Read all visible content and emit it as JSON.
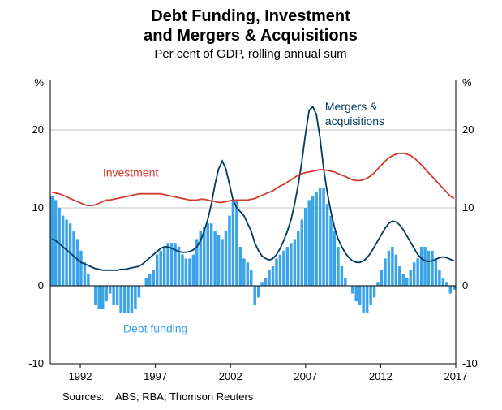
{
  "title_line1": "Debt Funding, Investment",
  "title_line2": "and Mergers & Acquisitions",
  "subtitle": "Per cent of GDP, rolling annual sum",
  "y_unit_left": "%",
  "y_unit_right": "%",
  "source_label": "Sources:",
  "source_text": "ABS; RBA; Thomson Reuters",
  "chart": {
    "type": "combo-bar-line",
    "x_start_year": 1990,
    "x_end_year": 2017,
    "points_per_year": 4,
    "xticks": [
      1992,
      1997,
      2002,
      2007,
      2012,
      2017
    ],
    "ylim": [
      -10,
      25
    ],
    "yticks": [
      -10,
      0,
      10,
      20
    ],
    "grid_color": "#c0c0c0",
    "axis_color": "#000000",
    "background_color": "#ffffff",
    "bar_color": "#3ba3e8",
    "bar_label": "Debt funding",
    "bar_label_color": "#3ba3e8",
    "line1_color": "#003a5c",
    "line1_label_l1": "Mergers &",
    "line1_label_l2": "acquisitions",
    "line1_label_color": "#003a5c",
    "line2_color": "#d43a2f",
    "line2_label": "Investment",
    "line2_label_color": "#d43a2f",
    "title_fontsize": 20,
    "subtitle_fontsize": 15,
    "axis_fontsize": 13,
    "legend_fontsize": 14,
    "source_fontsize": 13,
    "bars": [
      11.5,
      11,
      10,
      9,
      8.5,
      8,
      7,
      6,
      4.5,
      3,
      1.5,
      0,
      -2.5,
      -3,
      -3,
      -2,
      -1,
      -2.5,
      -2.5,
      -3.5,
      -3.5,
      -3.5,
      -3.5,
      -3,
      -1.5,
      0,
      1,
      1.5,
      2,
      4,
      4.5,
      5,
      5.5,
      5.5,
      5.5,
      5,
      4,
      3.5,
      3.5,
      4,
      6,
      7,
      7.5,
      8,
      8,
      7,
      6.5,
      6,
      7,
      9,
      11,
      11,
      5,
      3.5,
      3,
      2,
      -2.5,
      -1.5,
      0.5,
      1,
      2,
      2.5,
      3.5,
      4,
      4.5,
      5,
      5.5,
      6,
      7,
      8.5,
      10,
      11,
      11.5,
      12,
      12.5,
      12.5,
      10.5,
      9,
      7,
      5,
      2.5,
      1,
      0,
      -1,
      -2,
      -2.5,
      -3.5,
      -3.5,
      -2.5,
      -1.5,
      0.5,
      2,
      3.5,
      4.5,
      5,
      4,
      2.5,
      1.5,
      1,
      2,
      3,
      3.5,
      5,
      5,
      4.5,
      4.5,
      3.5,
      2,
      1,
      0.5,
      -1,
      -0.5
    ],
    "line_investment": [
      12,
      11.9,
      11.8,
      11.6,
      11.4,
      11.2,
      11.0,
      10.8,
      10.6,
      10.4,
      10.3,
      10.3,
      10.4,
      10.6,
      10.8,
      11.0,
      11.0,
      11.1,
      11.2,
      11.3,
      11.4,
      11.5,
      11.6,
      11.7,
      11.8,
      11.8,
      11.8,
      11.8,
      11.8,
      11.8,
      11.8,
      11.7,
      11.6,
      11.5,
      11.4,
      11.3,
      11.2,
      11.1,
      11.0,
      11.0,
      11.0,
      11.1,
      11.1,
      11.0,
      10.9,
      10.8,
      10.7,
      10.7,
      10.8,
      10.9,
      11.0,
      11.0,
      11.0,
      11.0,
      11.0,
      11.1,
      11.2,
      11.4,
      11.6,
      11.8,
      12.0,
      12.2,
      12.5,
      12.8,
      13.0,
      13.3,
      13.6,
      13.9,
      14.2,
      14.4,
      14.5,
      14.6,
      14.7,
      14.8,
      14.9,
      14.9,
      14.8,
      14.7,
      14.6,
      14.4,
      14.2,
      14.0,
      13.8,
      13.6,
      13.5,
      13.5,
      13.6,
      13.8,
      14.1,
      14.5,
      15.0,
      15.5,
      16.0,
      16.4,
      16.7,
      16.9,
      17.0,
      17.0,
      16.9,
      16.7,
      16.4,
      16.0,
      15.5,
      15.0,
      14.5,
      14.0,
      13.5,
      13.0,
      12.5,
      12.0,
      11.5,
      11.2
    ],
    "line_mergers": [
      6.0,
      5.8,
      5.4,
      5.0,
      4.6,
      4.2,
      3.8,
      3.4,
      3.0,
      2.8,
      2.6,
      2.4,
      2.2,
      2.1,
      2.0,
      2.0,
      2.0,
      2.0,
      2.0,
      2.1,
      2.1,
      2.2,
      2.3,
      2.4,
      2.5,
      2.8,
      3.2,
      3.6,
      4.0,
      4.4,
      4.8,
      5.0,
      5.0,
      4.8,
      4.6,
      4.4,
      4.3,
      4.3,
      4.4,
      4.6,
      5.0,
      5.8,
      7.0,
      8.5,
      10.5,
      13.0,
      15.0,
      16.0,
      15.0,
      13.0,
      11.0,
      10.0,
      9.5,
      9.0,
      8.0,
      7.0,
      5.5,
      4.5,
      3.8,
      3.5,
      3.3,
      3.5,
      4.0,
      4.8,
      5.8,
      7.0,
      8.5,
      10.5,
      13.0,
      16.0,
      19.5,
      22.5,
      23.0,
      22.0,
      19.0,
      15.0,
      12.0,
      9.5,
      7.5,
      6.0,
      5.0,
      4.2,
      3.6,
      3.2,
      3.0,
      3.0,
      3.2,
      3.6,
      4.2,
      5.0,
      5.8,
      6.6,
      7.4,
      8.0,
      8.3,
      8.2,
      7.8,
      7.2,
      6.4,
      5.6,
      4.8,
      4.0,
      3.5,
      3.2,
      3.1,
      3.2,
      3.4,
      3.6,
      3.7,
      3.6,
      3.4,
      3.2
    ]
  }
}
